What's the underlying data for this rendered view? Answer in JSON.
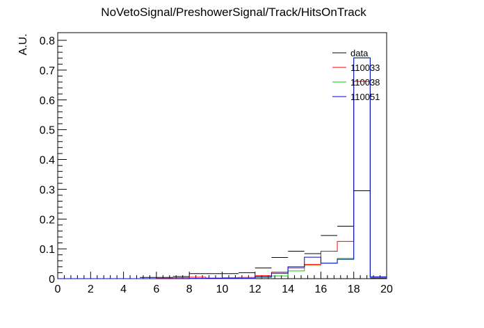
{
  "chart_data": {
    "type": "line",
    "title": "NoVetoSignal/PreshowerSignal/Track/HitsOnTrack",
    "xlabel": "",
    "ylabel": "A.U.",
    "xlim": [
      0,
      20
    ],
    "ylim": [
      0,
      0.8
    ],
    "x_ticks": [
      "0",
      "2",
      "4",
      "6",
      "8",
      "10",
      "12",
      "14",
      "16",
      "18",
      "20"
    ],
    "y_ticks": [
      "0",
      "0.1",
      "0.2",
      "0.3",
      "0.4",
      "0.5",
      "0.6",
      "0.7",
      "0.8"
    ],
    "bin_edges": [
      0,
      1,
      2,
      3,
      4,
      5,
      6,
      7,
      8,
      9,
      10,
      11,
      12,
      13,
      14,
      15,
      16,
      17,
      18,
      19,
      20
    ],
    "legend_position": "top-right",
    "series": [
      {
        "name": "data",
        "color": "#000000",
        "style": "points",
        "values": [
          0,
          0,
          0,
          0,
          0,
          0.004,
          0.004,
          0.007,
          0.017,
          0.017,
          0.017,
          0.02,
          0.036,
          0.071,
          0.092,
          0.084,
          0.145,
          0.176,
          0.295,
          0.001
        ]
      },
      {
        "name": "110033",
        "color": "#ff0000",
        "style": "hist",
        "values": [
          0,
          0,
          0,
          0,
          0,
          0,
          0.001,
          0.003,
          0.005,
          0.002,
          0.003,
          0.004,
          0.01,
          0.022,
          0.036,
          0.048,
          0.092,
          0.125,
          0.662,
          0.004
        ]
      },
      {
        "name": "110038",
        "color": "#00cc00",
        "style": "hist",
        "values": [
          0,
          0,
          0,
          0,
          0,
          0,
          0,
          0,
          0,
          0,
          0,
          0,
          0.004,
          0.009,
          0.026,
          0.045,
          0.052,
          0.068,
          0.741,
          0.004
        ]
      },
      {
        "name": "110051",
        "color": "#0000cc",
        "style": "hist",
        "values": [
          0,
          0,
          0,
          0,
          0,
          0,
          0,
          0,
          0.001,
          0.001,
          0.001,
          0.001,
          0.007,
          0.018,
          0.04,
          0.072,
          0.052,
          0.065,
          0.741,
          0.006
        ]
      }
    ]
  }
}
